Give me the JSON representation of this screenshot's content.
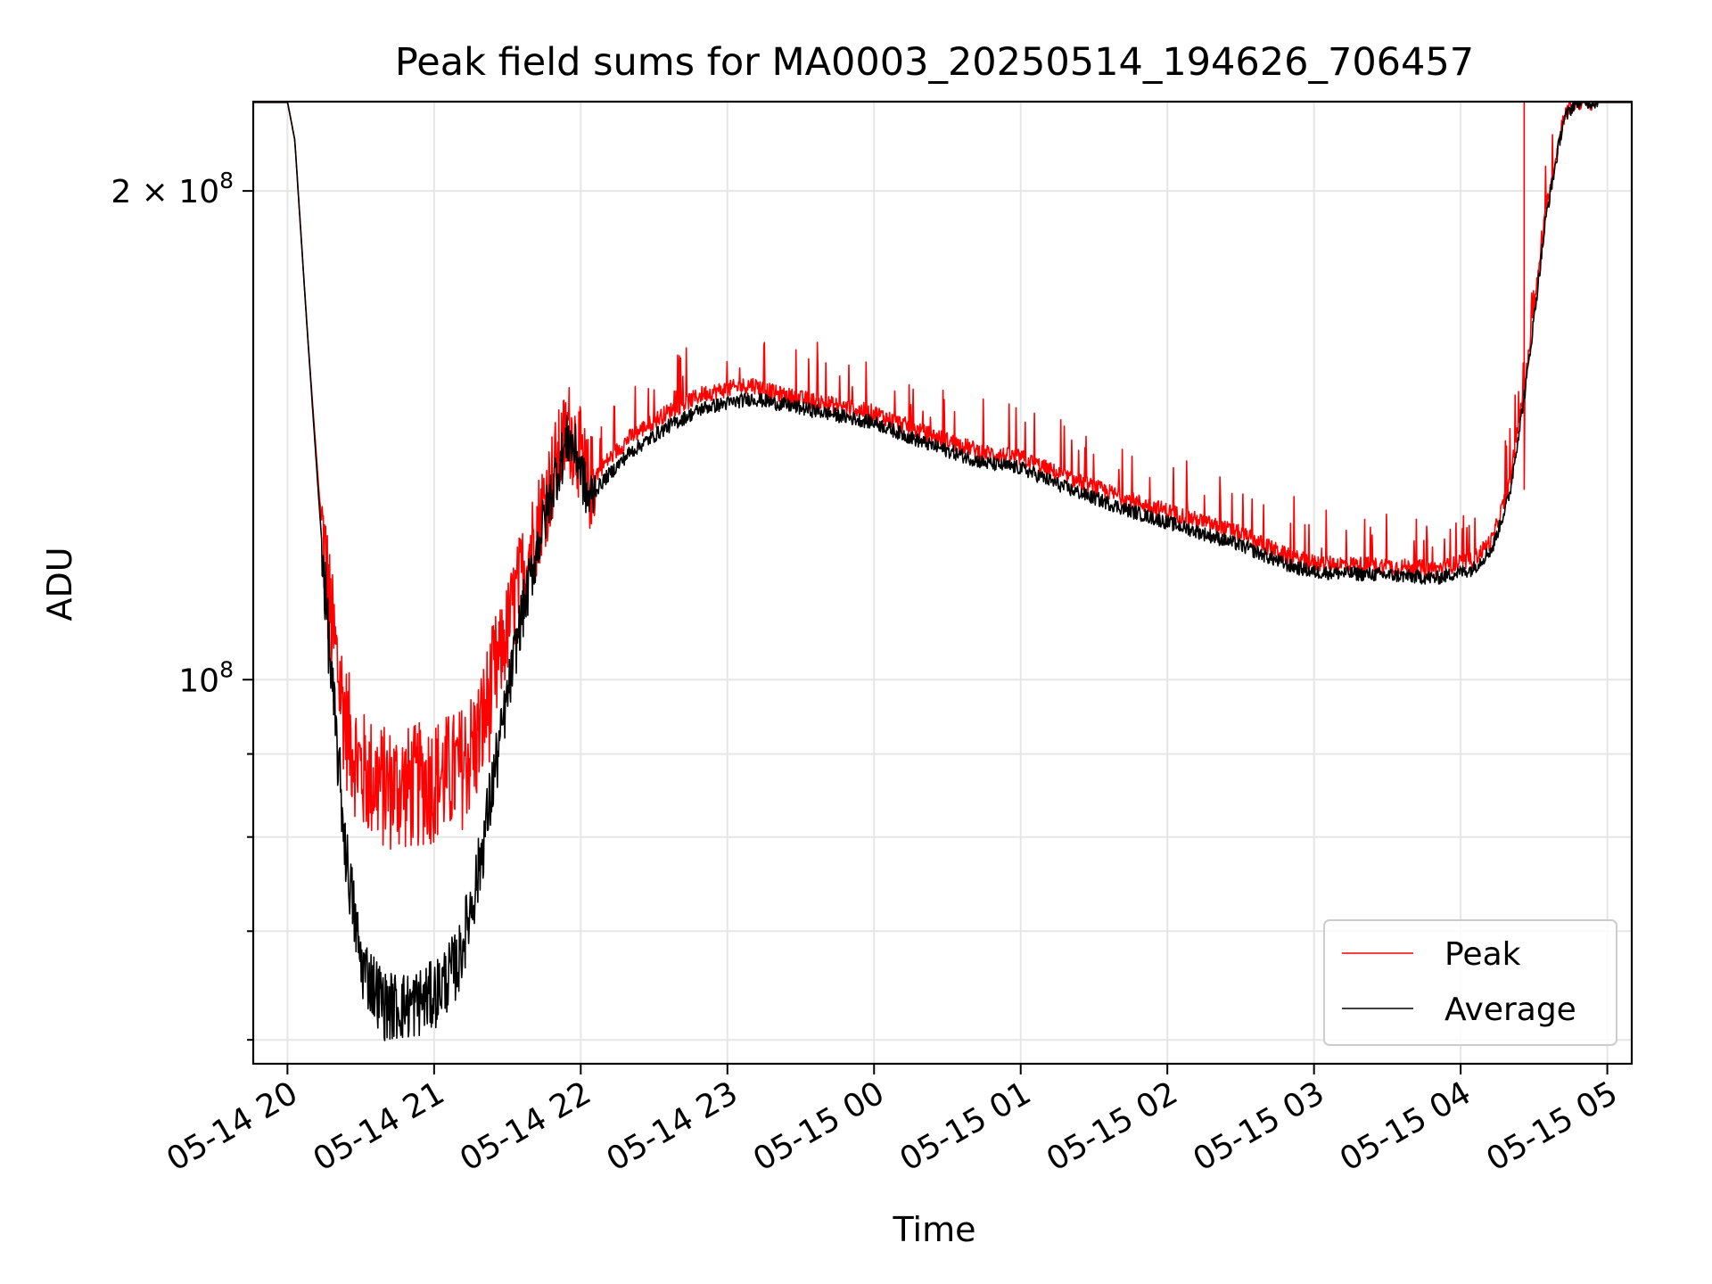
{
  "chart_data": {
    "type": "line",
    "title": "Peak field sums for MA0003_20250514_194626_706457",
    "xlabel": "Time",
    "ylabel": "ADU",
    "yscale": "log",
    "grid": true,
    "legend_position": "lower right",
    "xlim": [
      "2025-05-14 19:46",
      "2025-05-15 05:10"
    ],
    "ylim": [
      58000000,
      227000000
    ],
    "x_ticks": [
      {
        "t": "2025-05-14 20:00",
        "label": "05-14 20"
      },
      {
        "t": "2025-05-14 21:00",
        "label": "05-14 21"
      },
      {
        "t": "2025-05-14 22:00",
        "label": "05-14 22"
      },
      {
        "t": "2025-05-14 23:00",
        "label": "05-14 23"
      },
      {
        "t": "2025-05-15 00:00",
        "label": "05-15 00"
      },
      {
        "t": "2025-05-15 01:00",
        "label": "05-15 01"
      },
      {
        "t": "2025-05-15 02:00",
        "label": "05-15 02"
      },
      {
        "t": "2025-05-15 03:00",
        "label": "05-15 03"
      },
      {
        "t": "2025-05-15 04:00",
        "label": "05-15 04"
      },
      {
        "t": "2025-05-15 05:00",
        "label": "05-15 05"
      }
    ],
    "y_ticks": [
      {
        "value": 100000000,
        "label": "10^8",
        "base": "10",
        "exp": "8"
      },
      {
        "value": 200000000,
        "label": "2×10^8",
        "mantissa": "2 × 10",
        "exp": "8"
      }
    ],
    "y_minor_ticks": [
      60000000,
      70000000,
      80000000,
      90000000
    ],
    "series": [
      {
        "name": "Peak",
        "color": "#ff0000",
        "points": [
          [
            "2025-05-14 19:46",
            227000000
          ],
          [
            "2025-05-14 20:00",
            227000000
          ],
          [
            "2025-05-14 20:03",
            215000000
          ],
          [
            "2025-05-14 20:08",
            165000000
          ],
          [
            "2025-05-14 20:13",
            130000000
          ],
          [
            "2025-05-14 20:18",
            108000000
          ],
          [
            "2025-05-14 20:24",
            94000000
          ],
          [
            "2025-05-14 20:30",
            88000000
          ],
          [
            "2025-05-14 20:40",
            86000000
          ],
          [
            "2025-05-14 20:50",
            86000000
          ],
          [
            "2025-05-14 21:00",
            87000000
          ],
          [
            "2025-05-14 21:10",
            88000000
          ],
          [
            "2025-05-14 21:18",
            92000000
          ],
          [
            "2025-05-14 21:26",
            102000000
          ],
          [
            "2025-05-14 21:35",
            115000000
          ],
          [
            "2025-05-14 21:43",
            126000000
          ],
          [
            "2025-05-14 21:50",
            136000000
          ],
          [
            "2025-05-14 21:55",
            143000000
          ],
          [
            "2025-05-14 21:59",
            139000000
          ],
          [
            "2025-05-14 22:03",
            132000000
          ],
          [
            "2025-05-14 22:10",
            136000000
          ],
          [
            "2025-05-14 22:20",
            141000000
          ],
          [
            "2025-05-14 22:35",
            146000000
          ],
          [
            "2025-05-14 22:50",
            150000000
          ],
          [
            "2025-05-14 23:10",
            152000000
          ],
          [
            "2025-05-14 23:20",
            150000000
          ],
          [
            "2025-05-14 23:40",
            148000000
          ],
          [
            "2025-05-15 00:00",
            146000000
          ],
          [
            "2025-05-15 00:20",
            142000000
          ],
          [
            "2025-05-15 00:45",
            138000000
          ],
          [
            "2025-05-15 01:00",
            137000000
          ],
          [
            "2025-05-15 01:20",
            133000000
          ],
          [
            "2025-05-15 01:45",
            129000000
          ],
          [
            "2025-05-15 02:00",
            127000000
          ],
          [
            "2025-05-15 02:30",
            123000000
          ],
          [
            "2025-05-15 02:50",
            119000000
          ],
          [
            "2025-05-15 03:00",
            118000000
          ],
          [
            "2025-05-15 03:30",
            117500000
          ],
          [
            "2025-05-15 03:50",
            117000000
          ],
          [
            "2025-05-15 04:05",
            118500000
          ],
          [
            "2025-05-15 04:13",
            122000000
          ],
          [
            "2025-05-15 04:20",
            132000000
          ],
          [
            "2025-05-15 04:27",
            155000000
          ],
          [
            "2025-05-15 04:35",
            195000000
          ],
          [
            "2025-05-15 04:42",
            222000000
          ],
          [
            "2025-05-15 04:47",
            227000000
          ],
          [
            "2025-05-15 05:10",
            227000000
          ]
        ]
      },
      {
        "name": "Average",
        "color": "#000000",
        "points": [
          [
            "2025-05-14 19:46",
            227000000
          ],
          [
            "2025-05-14 20:00",
            227000000
          ],
          [
            "2025-05-14 20:03",
            215000000
          ],
          [
            "2025-05-14 20:08",
            165000000
          ],
          [
            "2025-05-14 20:13",
            128000000
          ],
          [
            "2025-05-14 20:18",
            100000000
          ],
          [
            "2025-05-14 20:24",
            78000000
          ],
          [
            "2025-05-14 20:30",
            67000000
          ],
          [
            "2025-05-14 20:40",
            63000000
          ],
          [
            "2025-05-14 20:50",
            63000000
          ],
          [
            "2025-05-14 21:00",
            64000000
          ],
          [
            "2025-05-14 21:10",
            67000000
          ],
          [
            "2025-05-14 21:18",
            76000000
          ],
          [
            "2025-05-14 21:26",
            90000000
          ],
          [
            "2025-05-14 21:35",
            108000000
          ],
          [
            "2025-05-14 21:43",
            122000000
          ],
          [
            "2025-05-14 21:50",
            134000000
          ],
          [
            "2025-05-14 21:55",
            141000000
          ],
          [
            "2025-05-14 21:59",
            137000000
          ],
          [
            "2025-05-14 22:03",
            129000000
          ],
          [
            "2025-05-14 22:10",
            133000000
          ],
          [
            "2025-05-14 22:20",
            138000000
          ],
          [
            "2025-05-14 22:35",
            143000000
          ],
          [
            "2025-05-14 22:50",
            147000000
          ],
          [
            "2025-05-14 23:10",
            149000000
          ],
          [
            "2025-05-14 23:20",
            148000000
          ],
          [
            "2025-05-14 23:40",
            146000000
          ],
          [
            "2025-05-15 00:00",
            144000000
          ],
          [
            "2025-05-15 00:20",
            140000000
          ],
          [
            "2025-05-15 00:45",
            136000000
          ],
          [
            "2025-05-15 01:00",
            135000000
          ],
          [
            "2025-05-15 01:20",
            131000000
          ],
          [
            "2025-05-15 01:45",
            127000000
          ],
          [
            "2025-05-15 02:00",
            125000000
          ],
          [
            "2025-05-15 02:30",
            121000000
          ],
          [
            "2025-05-15 02:50",
            117500000
          ],
          [
            "2025-05-15 03:00",
            116500000
          ],
          [
            "2025-05-15 03:30",
            116000000
          ],
          [
            "2025-05-15 03:50",
            115500000
          ],
          [
            "2025-05-15 04:05",
            117000000
          ],
          [
            "2025-05-15 04:13",
            120500000
          ],
          [
            "2025-05-15 04:20",
            130000000
          ],
          [
            "2025-05-15 04:27",
            153000000
          ],
          [
            "2025-05-15 04:35",
            193000000
          ],
          [
            "2025-05-15 04:42",
            221000000
          ],
          [
            "2025-05-15 04:47",
            227000000
          ],
          [
            "2025-05-15 05:10",
            227000000
          ]
        ]
      }
    ],
    "annotations": [
      {
        "series": "Peak",
        "type": "spike",
        "t": "2025-05-15 04:26",
        "from": 131000000,
        "to": 227000000
      }
    ]
  }
}
